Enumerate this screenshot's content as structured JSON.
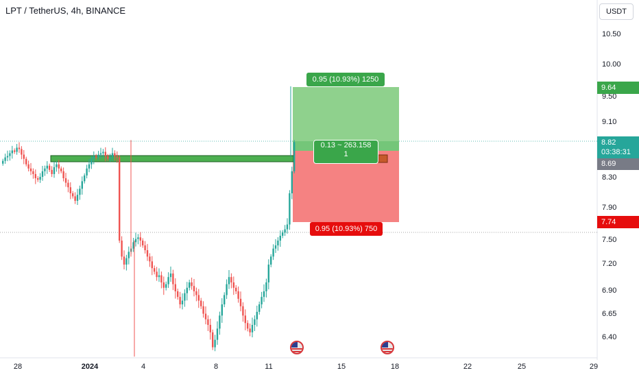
{
  "header": {
    "title": "LPT / TetherUS, 4h, BINANCE",
    "currency_button": "USDT"
  },
  "colors": {
    "up": "#26a69a",
    "down": "#ef5350",
    "target_zone": "#8fd18d",
    "stop_zone": "#f58282",
    "tp_label": "#3aa64a",
    "sl_label": "#e60d0d",
    "last_price": "#26a69a",
    "close_price": "#787b86"
  },
  "price_labels": {
    "take_profit": "9.64",
    "current_price": "8.82",
    "countdown": "03:38:31",
    "entry": "8.69",
    "stop": "7.74"
  },
  "position": {
    "target_text": "0.95 (10.93%) 1250",
    "ratio_text": "0.13 ~ 263.158",
    "qty_text": "1",
    "stop_text": "0.95 (10.93%) 750"
  },
  "events": [
    "us-flag-icon",
    "us-flag-icon"
  ],
  "chart_data": {
    "type": "candlestick",
    "title": "LPT / TetherUS, 4h, BINANCE",
    "y_ticks": [
      "10.50",
      "10.00",
      "9.50",
      "9.10",
      "8.30",
      "7.90",
      "7.50",
      "7.20",
      "6.90",
      "6.65",
      "6.40"
    ],
    "x_ticks": [
      "28",
      "2024",
      "4",
      "8",
      "11",
      "15",
      "18",
      "22",
      "25",
      "29"
    ],
    "ylim": [
      6.2,
      10.75
    ],
    "levels": {
      "take_profit": 9.64,
      "entry": 8.69,
      "stop": 7.74,
      "last": 8.82,
      "support_band": 8.72
    },
    "price_walk": [
      8.55,
      8.6,
      8.62,
      8.66,
      8.7,
      8.68,
      8.74,
      8.72,
      8.64,
      8.58,
      8.5,
      8.44,
      8.4,
      8.36,
      8.3,
      8.28,
      8.32,
      8.4,
      8.44,
      8.48,
      8.42,
      8.36,
      8.46,
      8.5,
      8.44,
      8.4,
      8.3,
      8.24,
      8.18,
      8.1,
      8.06,
      8.0,
      8.08,
      8.16,
      8.26,
      8.34,
      8.44,
      8.5,
      8.58,
      8.62,
      8.6,
      8.64,
      8.66,
      8.68,
      8.62,
      8.58,
      8.6,
      8.66,
      8.62,
      8.6,
      7.5,
      7.3,
      7.2,
      7.28,
      7.36,
      7.4,
      7.48,
      7.52,
      7.54,
      7.5,
      7.44,
      7.38,
      7.3,
      7.24,
      7.16,
      7.12,
      7.06,
      7.08,
      7.0,
      6.94,
      6.98,
      7.06,
      7.1,
      6.98,
      6.9,
      6.84,
      6.76,
      6.8,
      6.88,
      6.94,
      7.0,
      6.96,
      6.9,
      6.86,
      6.8,
      6.74,
      6.66,
      6.6,
      6.54,
      6.46,
      6.3,
      6.38,
      6.5,
      6.64,
      6.76,
      6.86,
      6.98,
      7.06,
      7.0,
      6.94,
      6.9,
      6.82,
      6.74,
      6.64,
      6.56,
      6.5,
      6.46,
      6.54,
      6.6,
      6.68,
      6.76,
      6.84,
      6.9,
      7.0,
      7.2,
      7.3,
      7.4,
      7.44,
      7.5,
      7.56,
      7.6,
      7.64,
      7.7,
      8.1,
      8.4,
      8.82
    ]
  }
}
